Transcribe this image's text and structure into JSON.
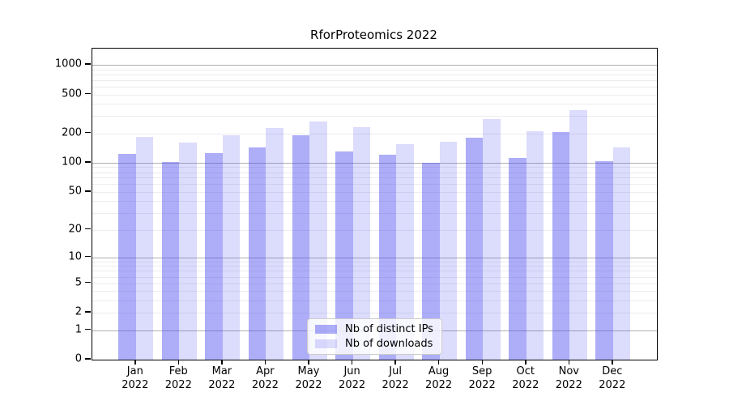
{
  "chart_data": {
    "type": "bar",
    "title": "RforProteomics 2022",
    "categories": [
      "Jan",
      "Feb",
      "Mar",
      "Apr",
      "May",
      "Jun",
      "Jul",
      "Aug",
      "Sep",
      "Oct",
      "Nov",
      "Dec"
    ],
    "year": "2022",
    "series": [
      {
        "name": "Nb of distinct IPs",
        "color": "rgba(69,69,238,0.44)",
        "values": [
          123,
          101,
          125,
          144,
          191,
          130,
          120,
          100,
          182,
          111,
          206,
          104
        ]
      },
      {
        "name": "Nb of downloads",
        "color": "rgba(69,69,238,0.19)",
        "values": [
          184,
          160,
          190,
          226,
          264,
          232,
          156,
          165,
          280,
          211,
          346,
          143
        ]
      }
    ],
    "y_axis": {
      "scale": "log1p",
      "tick_values": [
        0,
        1,
        2,
        5,
        10,
        20,
        50,
        100,
        200,
        500,
        1000
      ],
      "tick_labels": [
        "0",
        "1",
        "2",
        "5",
        "10",
        "20",
        "50",
        "100",
        "200",
        "500",
        "1000"
      ],
      "max": 1000,
      "major_gridlines": [
        1,
        10,
        100,
        1000
      ]
    },
    "grid": true,
    "legend_position": "bottom-center",
    "colors": {
      "major_grid": "#b0b0b0",
      "minor_grid": "#ececf1",
      "axis": "#000000",
      "legend_border": "#cccccc"
    }
  }
}
